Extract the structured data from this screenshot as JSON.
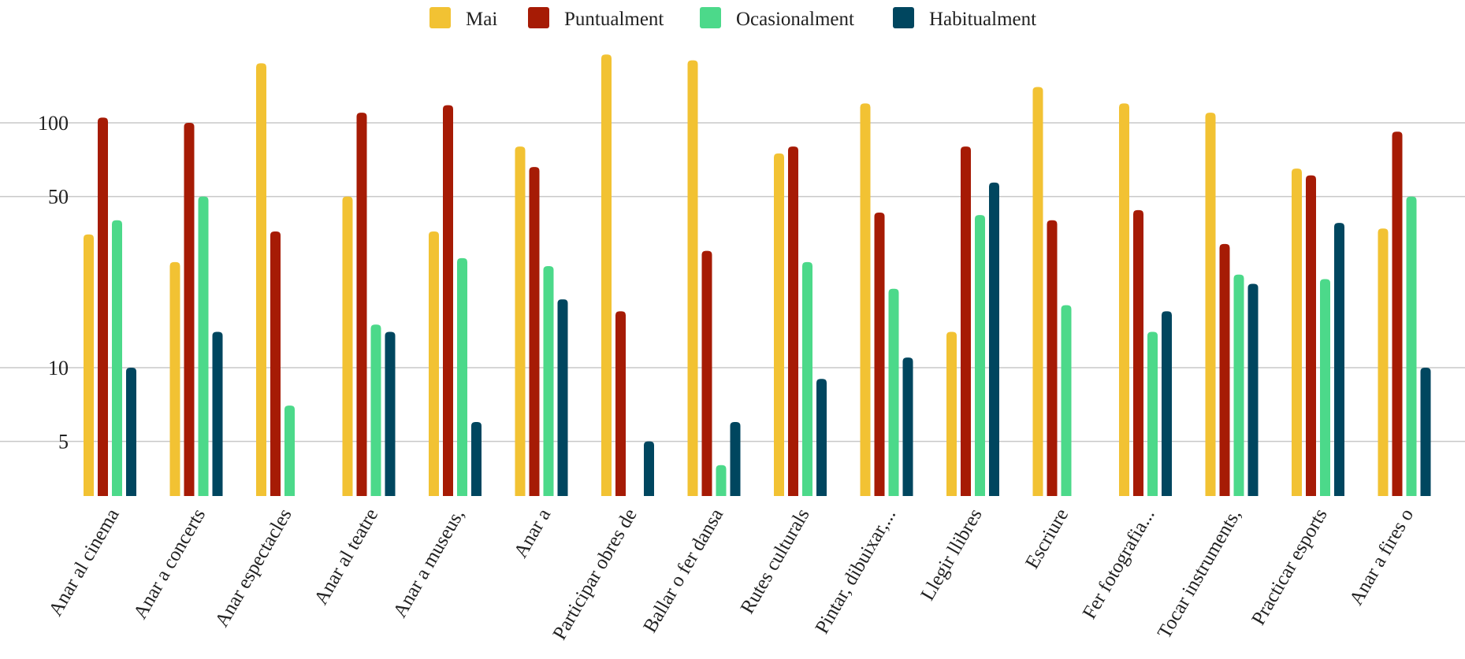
{
  "chart_data": {
    "type": "bar",
    "y_scale": "log",
    "ylim": [
      2.7,
      240
    ],
    "yticks": [
      5,
      10,
      50,
      100
    ],
    "ytick_labels": [
      "5",
      "10",
      "50",
      "100"
    ],
    "grid": true,
    "legend_position": "top-center",
    "categories": [
      "Anar al cinema",
      "Anar a concerts",
      "Anar espectacles",
      "Anar al teatre",
      "Anar a museus,",
      "Anar a",
      "Participar obres de",
      "Ballar o fer dansa",
      "Rutes culturals",
      "Pintar, dibuixar,...",
      "Llegir llibres",
      "Escriure",
      "Fer fotografia...",
      "Tocar instruments,",
      "Practicar esports",
      "Anar a fires o"
    ],
    "series": [
      {
        "name": "Mai",
        "color": "#F2C233",
        "values": [
          35,
          27,
          175,
          50,
          36,
          80,
          190,
          180,
          75,
          120,
          14,
          140,
          120,
          110,
          65,
          37
        ]
      },
      {
        "name": "Puntualment",
        "color": "#A61B05",
        "values": [
          105,
          100,
          36,
          110,
          118,
          66,
          17,
          30,
          80,
          43,
          80,
          40,
          44,
          32,
          61,
          92
        ]
      },
      {
        "name": "Ocasionalment",
        "color": "#4CD98A",
        "values": [
          40,
          50,
          7,
          15,
          28,
          26,
          0,
          4,
          27,
          21,
          42,
          18,
          14,
          24,
          23,
          50
        ]
      },
      {
        "name": "Habitualment",
        "color": "#00465F",
        "values": [
          10,
          14,
          0,
          14,
          6,
          19,
          5,
          6,
          9,
          11,
          57,
          0,
          17,
          22,
          39,
          10
        ]
      }
    ]
  }
}
